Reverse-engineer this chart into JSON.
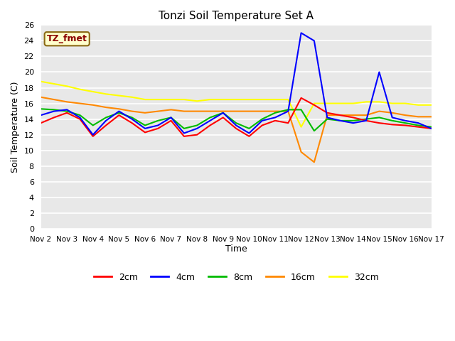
{
  "title": "Tonzi Soil Temperature Set A",
  "xlabel": "Time",
  "ylabel": "Soil Temperature (C)",
  "ylim": [
    0,
    26
  ],
  "yticks": [
    0,
    2,
    4,
    6,
    8,
    10,
    12,
    14,
    16,
    18,
    20,
    22,
    24,
    26
  ],
  "xtick_labels": [
    "Nov 2",
    "Nov 3",
    "Nov 4",
    "Nov 5",
    "Nov 6",
    "Nov 7",
    "Nov 8",
    "Nov 9",
    "Nov 10",
    "Nov 11",
    "Nov 12",
    "Nov 13",
    "Nov 14",
    "Nov 15",
    "Nov 16",
    "Nov 17"
  ],
  "annotation_label": "TZ_fmet",
  "colors": {
    "2cm": "#FF0000",
    "4cm": "#0000FF",
    "8cm": "#00BB00",
    "16cm": "#FF8800",
    "32cm": "#FFFF00"
  },
  "fig_bg": "#FFFFFF",
  "plot_bg": "#E8E8E8",
  "grid_color": "#FFFFFF",
  "x": [
    0,
    0.5,
    1,
    1.5,
    2,
    2.5,
    3,
    3.5,
    4,
    4.5,
    5,
    5.5,
    6,
    6.5,
    7,
    7.5,
    8,
    8.5,
    9,
    9.5,
    10,
    10.5,
    11,
    11.5,
    12,
    12.5,
    13,
    13.5,
    14,
    14.5,
    15
  ],
  "data_2cm": [
    13.5,
    14.2,
    14.8,
    14.0,
    11.8,
    13.2,
    14.5,
    13.5,
    12.3,
    12.8,
    13.8,
    11.8,
    12.0,
    13.2,
    14.2,
    12.8,
    11.8,
    13.2,
    13.8,
    13.5,
    16.7,
    15.8,
    14.8,
    14.5,
    14.2,
    13.8,
    13.5,
    13.3,
    13.2,
    13.0,
    12.8
  ],
  "data_4cm": [
    14.5,
    15.0,
    15.2,
    14.2,
    12.0,
    13.8,
    15.0,
    14.0,
    12.8,
    13.2,
    14.2,
    12.2,
    12.8,
    13.8,
    14.8,
    13.2,
    12.2,
    13.8,
    14.2,
    15.0,
    25.0,
    24.0,
    14.2,
    13.8,
    13.5,
    13.8,
    20.0,
    14.2,
    13.8,
    13.5,
    12.8
  ],
  "data_8cm": [
    15.3,
    15.2,
    15.0,
    14.5,
    13.2,
    14.2,
    14.8,
    14.2,
    13.2,
    13.8,
    14.2,
    12.8,
    13.2,
    14.2,
    14.8,
    13.5,
    12.8,
    14.0,
    14.8,
    15.2,
    15.2,
    12.5,
    14.0,
    13.8,
    13.8,
    14.0,
    14.2,
    13.8,
    13.5,
    13.2,
    13.0
  ],
  "data_16cm": [
    16.8,
    16.5,
    16.2,
    16.0,
    15.8,
    15.5,
    15.3,
    15.0,
    14.8,
    15.0,
    15.2,
    15.0,
    15.0,
    15.0,
    15.0,
    15.0,
    15.0,
    15.0,
    15.0,
    15.0,
    9.8,
    8.5,
    14.5,
    14.5,
    14.5,
    14.5,
    15.0,
    14.8,
    14.5,
    14.3,
    14.3
  ],
  "data_32cm": [
    18.8,
    18.5,
    18.2,
    17.8,
    17.5,
    17.2,
    17.0,
    16.8,
    16.5,
    16.5,
    16.5,
    16.5,
    16.3,
    16.5,
    16.5,
    16.5,
    16.5,
    16.5,
    16.5,
    16.5,
    13.0,
    16.0,
    16.0,
    16.0,
    16.0,
    16.2,
    16.2,
    16.0,
    16.0,
    15.8,
    15.8
  ]
}
